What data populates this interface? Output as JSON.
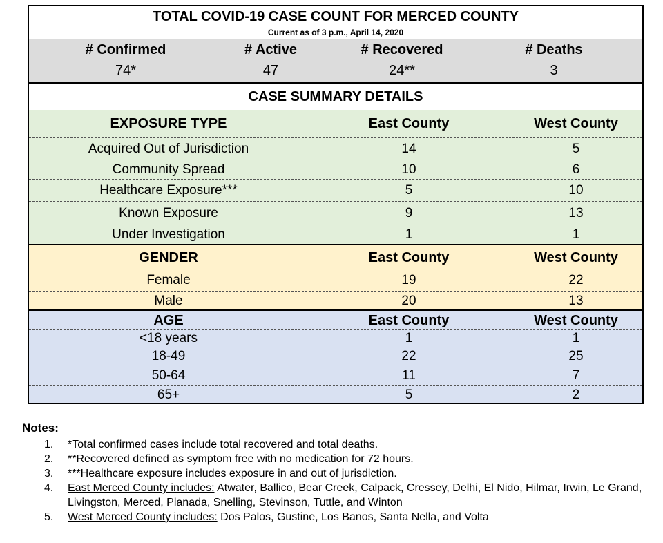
{
  "header": {
    "title": "TOTAL COVID-19 CASE COUNT FOR MERCED COUNTY",
    "subtitle": "Current as of 3 p.m., April 14, 2020"
  },
  "totals": {
    "labels": [
      "# Confirmed",
      "# Active",
      "# Recovered",
      "# Deaths"
    ],
    "values": [
      "74*",
      "47",
      "24**",
      "3"
    ]
  },
  "summary_title": "CASE SUMMARY DETAILS",
  "exposure": {
    "header": [
      "EXPOSURE TYPE",
      "East County",
      "West County"
    ],
    "rows": [
      [
        "Acquired Out of Jurisdiction",
        "14",
        "5"
      ],
      [
        "Community Spread",
        "10",
        "6"
      ],
      [
        "Healthcare Exposure***",
        "5",
        "10"
      ],
      [
        "Known Exposure",
        "9",
        "13"
      ],
      [
        "Under Investigation",
        "1",
        "1"
      ]
    ]
  },
  "gender": {
    "header": [
      "GENDER",
      "East County",
      "West County"
    ],
    "rows": [
      [
        "Female",
        "19",
        "22"
      ],
      [
        "Male",
        "20",
        "13"
      ]
    ]
  },
  "age": {
    "header": [
      "AGE",
      "East County",
      "West County"
    ],
    "rows": [
      [
        "<18 years",
        "1",
        "1"
      ],
      [
        "18-49",
        "22",
        "25"
      ],
      [
        "50-64",
        "11",
        "7"
      ],
      [
        "65+",
        "5",
        "2"
      ]
    ]
  },
  "notes": {
    "heading": "Notes:",
    "items": [
      {
        "num": "1.",
        "text": "*Total confirmed cases include total recovered and total deaths."
      },
      {
        "num": "2.",
        "text": "**Recovered defined as symptom free with no medication for 72 hours."
      },
      {
        "num": "3.",
        "text": "***Healthcare exposure includes exposure in and out of jurisdiction."
      },
      {
        "num": "4.",
        "label": "East Merced County includes:",
        "text": " Atwater, Ballico, Bear Creek, Calpack, Cressey, Delhi, El Nido, Hilmar, Irwin, Le Grand, Livingston, Merced, Planada, Snelling, Stevinson, Tuttle, and Winton"
      },
      {
        "num": "5.",
        "label": "West Merced County includes:",
        "text": " Dos Palos, Gustine, Los Banos, Santa Nella, and Volta"
      }
    ]
  }
}
